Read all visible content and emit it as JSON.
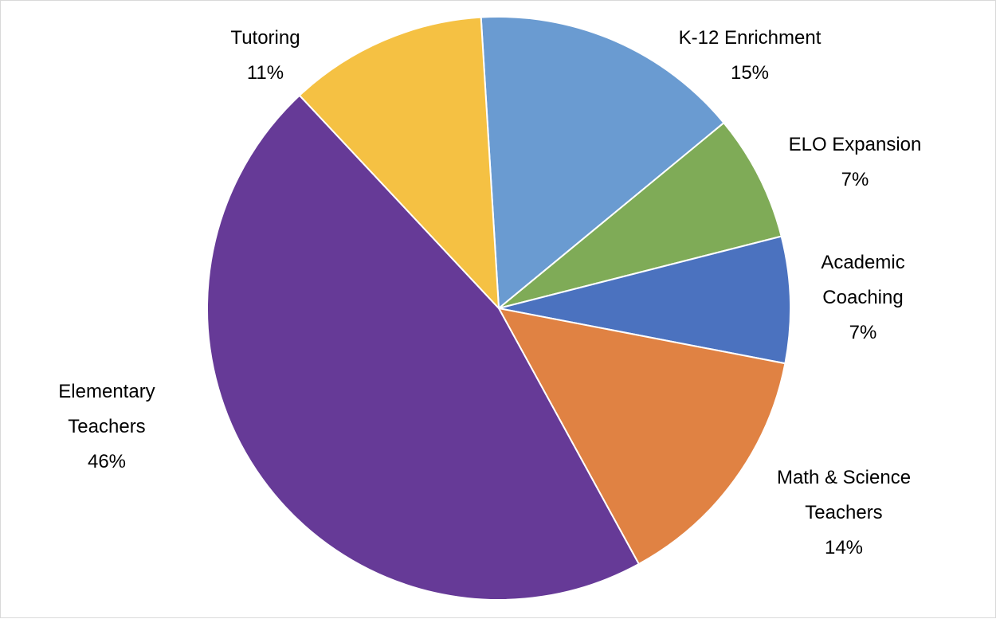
{
  "chart_data": {
    "type": "pie",
    "title": "",
    "start_angle_deg": -3.5,
    "direction": "clockwise",
    "slices": [
      {
        "label": "K-12 Enrichment",
        "label_lines": [
          "K-12 Enrichment",
          "15%"
        ],
        "value": 15,
        "color": "#6a9bd1"
      },
      {
        "label": "ELO Expansion",
        "label_lines": [
          "ELO Expansion",
          "7%"
        ],
        "value": 7,
        "color": "#7fab57"
      },
      {
        "label": "Academic Coaching",
        "label_lines": [
          "Academic",
          "Coaching",
          "7%"
        ],
        "value": 7,
        "color": "#4b72bf"
      },
      {
        "label": "Math & Science Teachers",
        "label_lines": [
          "Math & Science",
          "Teachers",
          "14%"
        ],
        "value": 14,
        "color": "#e08243"
      },
      {
        "label": "Elementary Teachers",
        "label_lines": [
          "Elementary",
          "Teachers",
          "46%"
        ],
        "value": 46,
        "color": "#663a97"
      },
      {
        "label": "Tutoring",
        "label_lines": [
          "Tutoring",
          "11%"
        ],
        "value": 11,
        "color": "#f5c143"
      }
    ]
  }
}
